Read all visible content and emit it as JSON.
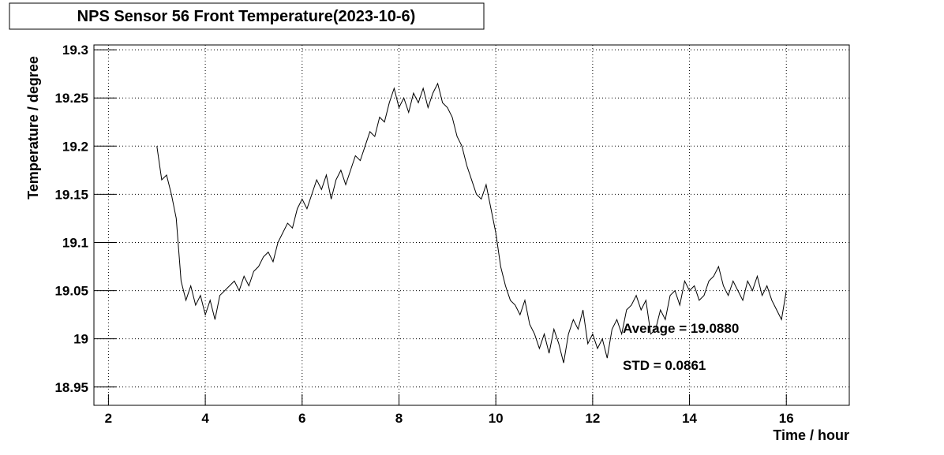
{
  "chart_data": {
    "type": "line",
    "title": "NPS Sensor 56 Front Temperature(2023-10-6)",
    "x_label": "Time / hour",
    "y_label": "Temperature / degree",
    "annotations": [
      "Average = 19.0880",
      "STD = 0.0861"
    ],
    "grid": true,
    "xlim": [
      1.7,
      17.3
    ],
    "ylim": [
      18.931,
      19.305
    ],
    "xticks": [
      2,
      4,
      6,
      8,
      10,
      12,
      14,
      16
    ],
    "yticks": [
      18.95,
      19,
      19.05,
      19.1,
      19.15,
      19.2,
      19.25,
      19.3
    ],
    "series": [
      {
        "color": "#000000",
        "x": [
          3.0,
          3.1,
          3.2,
          3.3,
          3.4,
          3.5,
          3.6,
          3.7,
          3.8,
          3.9,
          4.0,
          4.1,
          4.2,
          4.3,
          4.4,
          4.5,
          4.6,
          4.7,
          4.8,
          4.9,
          5.0,
          5.1,
          5.2,
          5.3,
          5.4,
          5.5,
          5.6,
          5.7,
          5.8,
          5.9,
          6.0,
          6.1,
          6.2,
          6.3,
          6.4,
          6.5,
          6.6,
          6.7,
          6.8,
          6.9,
          7.0,
          7.1,
          7.2,
          7.3,
          7.4,
          7.5,
          7.6,
          7.7,
          7.8,
          7.9,
          8.0,
          8.1,
          8.2,
          8.3,
          8.4,
          8.5,
          8.6,
          8.7,
          8.8,
          8.9,
          9.0,
          9.1,
          9.2,
          9.3,
          9.4,
          9.5,
          9.6,
          9.7,
          9.8,
          9.9,
          10.0,
          10.1,
          10.2,
          10.3,
          10.4,
          10.5,
          10.6,
          10.7,
          10.8,
          10.9,
          11.0,
          11.1,
          11.2,
          11.3,
          11.4,
          11.5,
          11.6,
          11.7,
          11.8,
          11.9,
          12.0,
          12.1,
          12.2,
          12.3,
          12.4,
          12.5,
          12.6,
          12.7,
          12.8,
          12.9,
          13.0,
          13.1,
          13.2,
          13.3,
          13.4,
          13.5,
          13.6,
          13.7,
          13.8,
          13.9,
          14.0,
          14.1,
          14.2,
          14.3,
          14.4,
          14.5,
          14.6,
          14.7,
          14.8,
          14.9,
          15.0,
          15.1,
          15.2,
          15.3,
          15.4,
          15.5,
          15.6,
          15.7,
          15.8,
          15.9,
          16.0
        ],
        "values": [
          19.2,
          19.165,
          19.17,
          19.15,
          19.125,
          19.06,
          19.04,
          19.055,
          19.035,
          19.045,
          19.025,
          19.04,
          19.02,
          19.045,
          19.05,
          19.055,
          19.06,
          19.05,
          19.065,
          19.055,
          19.07,
          19.075,
          19.085,
          19.09,
          19.08,
          19.1,
          19.11,
          19.12,
          19.115,
          19.135,
          19.145,
          19.135,
          19.15,
          19.165,
          19.155,
          19.17,
          19.145,
          19.165,
          19.175,
          19.16,
          19.175,
          19.19,
          19.185,
          19.2,
          19.215,
          19.21,
          19.23,
          19.225,
          19.245,
          19.26,
          19.24,
          19.25,
          19.235,
          19.255,
          19.245,
          19.26,
          19.24,
          19.255,
          19.265,
          19.245,
          19.24,
          19.23,
          19.21,
          19.2,
          19.18,
          19.165,
          19.15,
          19.145,
          19.16,
          19.135,
          19.11,
          19.075,
          19.055,
          19.04,
          19.035,
          19.025,
          19.04,
          19.015,
          19.005,
          18.99,
          19.005,
          18.985,
          19.01,
          18.995,
          18.975,
          19.005,
          19.02,
          19.01,
          19.03,
          18.995,
          19.005,
          18.99,
          19.0,
          18.98,
          19.01,
          19.02,
          19.005,
          19.03,
          19.035,
          19.045,
          19.03,
          19.04,
          19.005,
          19.01,
          19.03,
          19.02,
          19.045,
          19.05,
          19.035,
          19.06,
          19.05,
          19.055,
          19.04,
          19.045,
          19.06,
          19.065,
          19.075,
          19.055,
          19.045,
          19.06,
          19.05,
          19.04,
          19.06,
          19.05,
          19.065,
          19.045,
          19.055,
          19.04,
          19.03,
          19.02,
          19.05
        ]
      }
    ]
  }
}
